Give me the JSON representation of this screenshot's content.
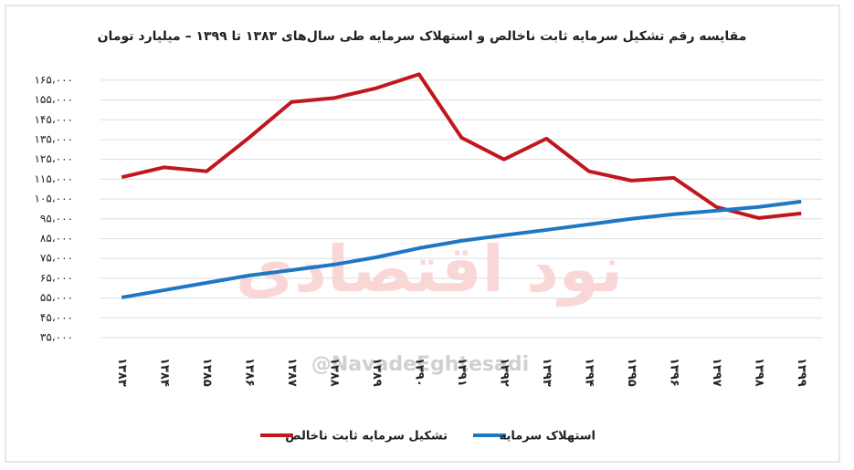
{
  "chart_data": {
    "type": "line",
    "title": "مقایسه رقم تشکیل سرمایه ثابت ناخالص و استهلاک سرمایه طی سال‌های ۱۳۸۳ تا ۱۳۹۹ – میلیارد تومان",
    "watermark": "@NavadeEghtesadi",
    "logo_text": "نود اقتصادی",
    "categories": [
      "۱۳۸۳",
      "۱۳۸۴",
      "۱۳۸۵",
      "۱۳۸۶",
      "۱۳۸۷",
      "۱۳۸۸",
      "۱۳۸۹",
      "۱۳۹۰",
      "۱۳۹۱",
      "۱۳۹۲",
      "۱۳۹۳",
      "۱۳۹۴",
      "۱۳۹۵",
      "۱۳۹۶",
      "۱۳۹۷",
      "۱۳۹۸",
      "۱۳۹۹"
    ],
    "series": [
      {
        "name": "تشکیل سرمایه ثابت ناخالص",
        "color": "#c0171f",
        "values": [
          116000,
          121000,
          119000,
          136000,
          154000,
          156000,
          161000,
          168000,
          136000,
          125000,
          135500,
          119000,
          114300,
          115700,
          101000,
          95400,
          97700
        ]
      },
      {
        "name": "استهلاک سرمایه",
        "color": "#1f77c4",
        "values": [
          55300,
          59000,
          62700,
          66400,
          69100,
          71900,
          75600,
          80200,
          83900,
          86700,
          89400,
          92200,
          95000,
          97300,
          99100,
          101000,
          103700
        ]
      }
    ],
    "ylim": [
      35000,
      170000
    ],
    "yticks": [
      {
        "value": 35000,
        "label": "۳۵،۰۰۰"
      },
      {
        "value": 45000,
        "label": "۴۵،۰۰۰"
      },
      {
        "value": 55000,
        "label": "۵۵،۰۰۰"
      },
      {
        "value": 65000,
        "label": "۶۵،۰۰۰"
      },
      {
        "value": 75000,
        "label": "۷۵،۰۰۰"
      },
      {
        "value": 85000,
        "label": "۸۵،۰۰۰"
      },
      {
        "value": 95000,
        "label": "۹۵،۰۰۰"
      },
      {
        "value": 105000,
        "label": "۱۰۵،۰۰۰"
      },
      {
        "value": 115000,
        "label": "۱۱۵،۰۰۰"
      },
      {
        "value": 125000,
        "label": "۱۲۵،۰۰۰"
      },
      {
        "value": 135000,
        "label": "۱۳۵،۰۰۰"
      },
      {
        "value": 145000,
        "label": "۱۴۵،۰۰۰"
      },
      {
        "value": 155000,
        "label": "۱۵۵،۰۰۰"
      },
      {
        "value": 165000,
        "label": "۱۶۵،۰۰۰"
      }
    ],
    "grid": true
  }
}
